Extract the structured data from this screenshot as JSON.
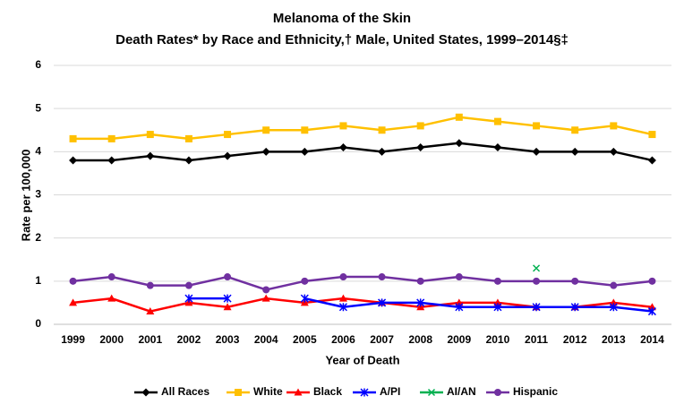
{
  "chart_data": {
    "type": "line",
    "title": "Melanoma of the Skin",
    "subtitle": "Death Rates* by Race and Ethnicity,† Male, United States, 1999–2014§‡",
    "x_label": "Year of Death",
    "y_label": "Rate per 100,000",
    "categories": [
      "1999",
      "2000",
      "2001",
      "2002",
      "2003",
      "2004",
      "2005",
      "2006",
      "2007",
      "2008",
      "2009",
      "2010",
      "2011",
      "2012",
      "2013",
      "2014"
    ],
    "ylim": [
      0,
      6
    ],
    "yticks": [
      0,
      1,
      2,
      3,
      4,
      5,
      6
    ],
    "grid": true,
    "legend": "bottom",
    "series": [
      {
        "name": "All Races",
        "color": "#000000",
        "marker": "diamond",
        "values": [
          3.8,
          3.8,
          3.9,
          3.8,
          3.9,
          4.0,
          4.0,
          4.1,
          4.0,
          4.1,
          4.2,
          4.1,
          4.0,
          4.0,
          4.0,
          3.8
        ]
      },
      {
        "name": "White",
        "color": "#ffc000",
        "marker": "square",
        "values": [
          4.3,
          4.3,
          4.4,
          4.3,
          4.4,
          4.5,
          4.5,
          4.6,
          4.5,
          4.6,
          4.8,
          4.7,
          4.6,
          4.5,
          4.6,
          4.4
        ]
      },
      {
        "name": "Black",
        "color": "#ff0000",
        "marker": "triangle",
        "values": [
          0.5,
          0.6,
          0.3,
          0.5,
          0.4,
          0.6,
          0.5,
          0.6,
          0.5,
          0.4,
          0.5,
          0.5,
          0.4,
          0.4,
          0.5,
          0.4
        ]
      },
      {
        "name": "A/PI",
        "color": "#0000ff",
        "marker": "star",
        "values": [
          null,
          null,
          null,
          0.6,
          0.6,
          null,
          0.6,
          0.4,
          0.5,
          0.5,
          0.4,
          0.4,
          0.4,
          0.4,
          0.4,
          0.3
        ]
      },
      {
        "name": "AI/AN",
        "color": "#00b050",
        "marker": "x",
        "values": [
          null,
          null,
          null,
          null,
          null,
          null,
          null,
          null,
          null,
          null,
          null,
          null,
          1.3,
          null,
          null,
          null
        ]
      },
      {
        "name": "Hispanic",
        "color": "#7030a0",
        "marker": "circle",
        "values": [
          1.0,
          1.1,
          0.9,
          0.9,
          1.1,
          0.8,
          1.0,
          1.1,
          1.1,
          1.0,
          1.1,
          1.0,
          1.0,
          1.0,
          0.9,
          1.0
        ]
      }
    ]
  }
}
